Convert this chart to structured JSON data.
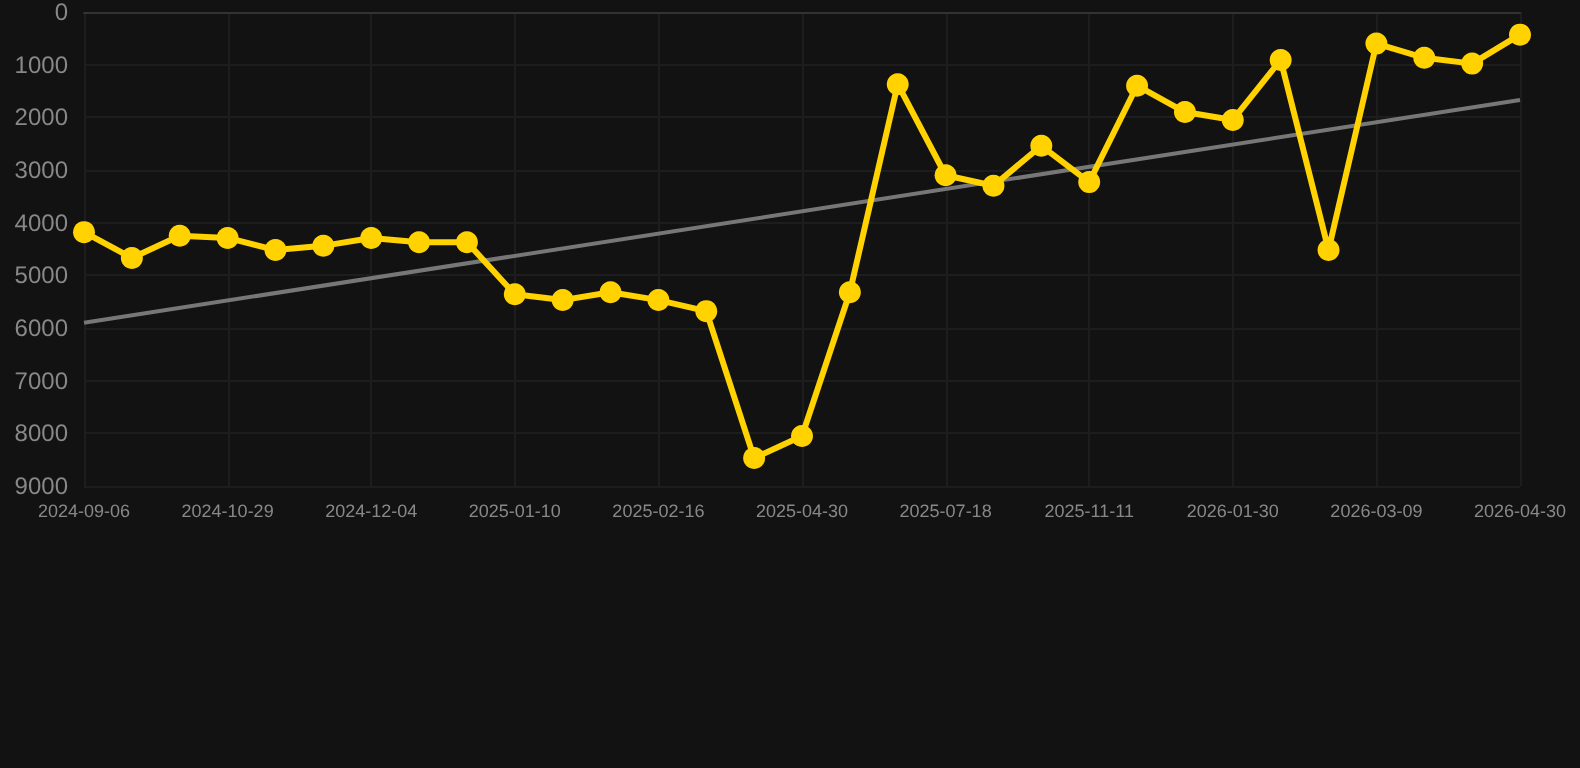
{
  "chart_data": {
    "type": "line",
    "categories": [
      "2024-09-06",
      null,
      null,
      "2024-10-29",
      null,
      null,
      "2024-12-04",
      null,
      null,
      "2025-01-10",
      null,
      null,
      "2025-02-16",
      null,
      null,
      "2025-04-30",
      null,
      null,
      "2025-07-18",
      null,
      null,
      "2025-11-11",
      null,
      null,
      "2026-01-30",
      null,
      null,
      "2026-03-09",
      null,
      null,
      "2026-04-30"
    ],
    "series": [
      {
        "color": "#ffd200",
        "marker": "circle",
        "values": [
          4180,
          4670,
          4250,
          4290,
          4520,
          4440,
          4290,
          4370,
          4370,
          5360,
          5470,
          5320,
          5470,
          5680,
          8470,
          8050,
          5320,
          1370,
          3100,
          3300,
          2540,
          3230,
          1400,
          1900,
          2050,
          910,
          4520,
          600,
          870,
          980,
          430
        ]
      },
      {
        "type": "line",
        "color": "#777777",
        "marker": "none",
        "values": [
          5900,
          null,
          null,
          null,
          null,
          null,
          null,
          null,
          null,
          null,
          null,
          null,
          null,
          null,
          null,
          null,
          null,
          null,
          null,
          null,
          null,
          null,
          null,
          null,
          null,
          null,
          null,
          null,
          null,
          null,
          1670
        ]
      }
    ],
    "ylim": [
      9000,
      0
    ],
    "yticks": [
      0,
      1000,
      2000,
      3000,
      4000,
      5000,
      6000,
      7000,
      8000,
      9000
    ],
    "grid": true
  }
}
